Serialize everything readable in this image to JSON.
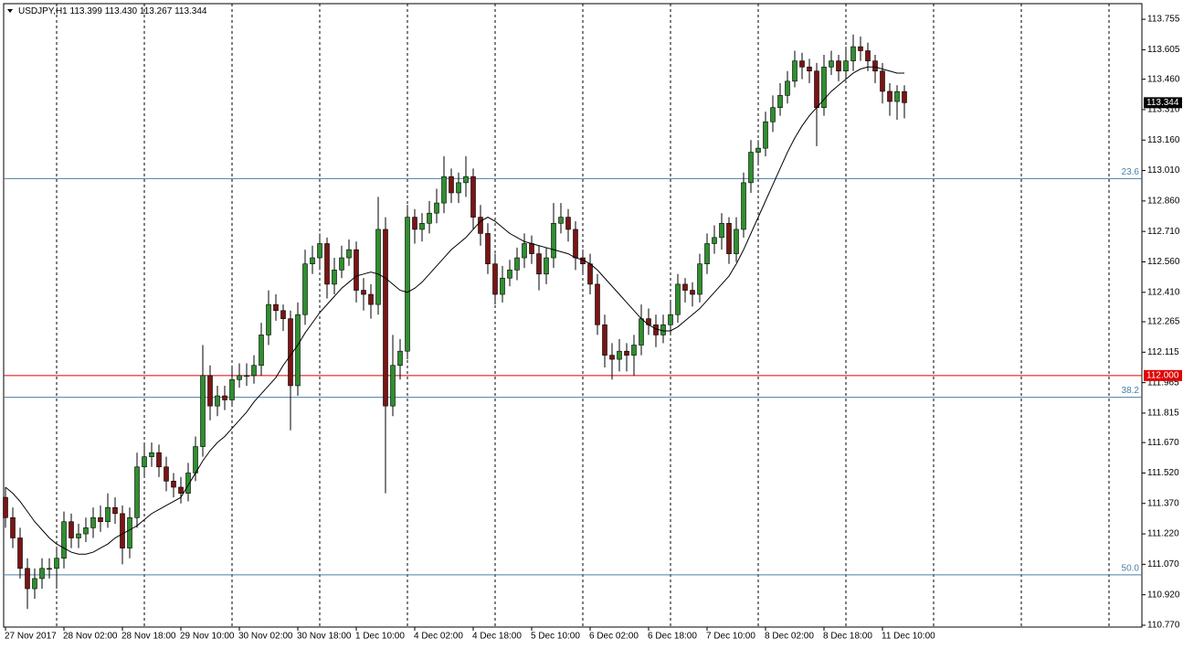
{
  "chart_data": {
    "type": "candlestick",
    "title": "USDJPY,H1",
    "header_values": [
      "113.399",
      "113.430",
      "113.267",
      "113.344"
    ],
    "ylim": [
      110.761,
      113.832
    ],
    "yticks": [
      {
        "value": 113.755,
        "label": "113.755"
      },
      {
        "value": 113.605,
        "label": "113.605"
      },
      {
        "value": 113.46,
        "label": "113.460"
      },
      {
        "value": 113.31,
        "label": "113.310"
      },
      {
        "value": 113.16,
        "label": "113.160"
      },
      {
        "value": 113.01,
        "label": "113.010"
      },
      {
        "value": 112.86,
        "label": "112.860"
      },
      {
        "value": 112.71,
        "label": "112.710"
      },
      {
        "value": 112.56,
        "label": "112.560"
      },
      {
        "value": 112.41,
        "label": "112.410"
      },
      {
        "value": 112.265,
        "label": "112.265"
      },
      {
        "value": 112.115,
        "label": "112.115"
      },
      {
        "value": 111.965,
        "label": "111.965"
      },
      {
        "value": 111.815,
        "label": "111.815"
      },
      {
        "value": 111.67,
        "label": "111.670"
      },
      {
        "value": 111.52,
        "label": "111.520"
      },
      {
        "value": 111.37,
        "label": "111.370"
      },
      {
        "value": 111.22,
        "label": "111.220"
      },
      {
        "value": 111.07,
        "label": "111.070"
      },
      {
        "value": 110.92,
        "label": "110.920"
      },
      {
        "value": 110.77,
        "label": "110.770"
      }
    ],
    "xticks": [
      {
        "value": 0,
        "label": "27 Nov 2017"
      },
      {
        "value": 8,
        "label": "28 Nov 02:00"
      },
      {
        "value": 16,
        "label": "28 Nov 18:00"
      },
      {
        "value": 24,
        "label": "29 Nov 10:00"
      },
      {
        "value": 32,
        "label": "30 Nov 02:00"
      },
      {
        "value": 40,
        "label": "30 Nov 18:00"
      },
      {
        "value": 48,
        "label": "1 Dec 10:00"
      },
      {
        "value": 56,
        "label": "4 Dec 02:00"
      },
      {
        "value": 64,
        "label": "4 Dec 18:00"
      },
      {
        "value": 72,
        "label": "5 Dec 10:00"
      },
      {
        "value": 80,
        "label": "6 Dec 02:00"
      },
      {
        "value": 88,
        "label": "6 Dec 18:00"
      },
      {
        "value": 96,
        "label": "7 Dec 10:00"
      },
      {
        "value": 104,
        "label": "8 Dec 02:00"
      },
      {
        "value": 112,
        "label": "8 Dec 18:00"
      },
      {
        "value": 120,
        "label": "11 Dec 10:00"
      }
    ],
    "price_line": {
      "value": 112,
      "label": "112.000",
      "color": "#e00000"
    },
    "levels": [
      {
        "value": 112.97,
        "label": "23.6"
      },
      {
        "value": 111.893,
        "label": "38.2"
      },
      {
        "value": 111.018,
        "label": "50.0"
      }
    ],
    "level_color": "#4a7fa8",
    "up_color": "#2f8f2f",
    "down_color": "#7a1414",
    "ma_color": "#000000",
    "ohlc": [
      [
        111.4,
        111.45,
        111.25,
        111.3
      ],
      [
        111.3,
        111.35,
        111.15,
        111.2
      ],
      [
        111.2,
        111.25,
        111.0,
        111.05
      ],
      [
        111.05,
        111.1,
        110.85,
        110.95
      ],
      [
        110.95,
        111.05,
        110.9,
        111.0
      ],
      [
        111.0,
        111.1,
        110.95,
        111.05
      ],
      [
        111.05,
        111.1,
        111.0,
        111.05
      ],
      [
        111.05,
        111.15,
        110.95,
        111.1
      ],
      [
        111.1,
        111.33,
        111.05,
        111.28
      ],
      [
        111.28,
        111.32,
        111.15,
        111.2
      ],
      [
        111.2,
        111.27,
        111.15,
        111.22
      ],
      [
        111.22,
        111.3,
        111.18,
        111.25
      ],
      [
        111.25,
        111.35,
        111.2,
        111.3
      ],
      [
        111.3,
        111.36,
        111.23,
        111.28
      ],
      [
        111.28,
        111.42,
        111.25,
        111.35
      ],
      [
        111.35,
        111.4,
        111.27,
        111.32
      ],
      [
        111.32,
        111.36,
        111.07,
        111.15
      ],
      [
        111.15,
        111.35,
        111.1,
        111.3
      ],
      [
        111.3,
        111.62,
        111.25,
        111.55
      ],
      [
        111.55,
        111.66,
        111.5,
        111.6
      ],
      [
        111.6,
        111.67,
        111.55,
        111.62
      ],
      [
        111.62,
        111.66,
        111.5,
        111.55
      ],
      [
        111.55,
        111.6,
        111.43,
        111.48
      ],
      [
        111.48,
        111.52,
        111.4,
        111.45
      ],
      [
        111.45,
        111.5,
        111.37,
        111.42
      ],
      [
        111.42,
        111.57,
        111.38,
        111.52
      ],
      [
        111.52,
        111.7,
        111.48,
        111.65
      ],
      [
        111.65,
        112.15,
        111.6,
        112.0
      ],
      [
        112.0,
        112.05,
        111.78,
        111.85
      ],
      [
        111.85,
        111.95,
        111.8,
        111.9
      ],
      [
        111.9,
        111.95,
        111.83,
        111.88
      ],
      [
        111.88,
        112.05,
        111.85,
        111.98
      ],
      [
        111.98,
        112.06,
        111.94,
        112.0
      ],
      [
        112.0,
        112.06,
        111.95,
        112.0
      ],
      [
        112.0,
        112.1,
        111.96,
        112.05
      ],
      [
        112.05,
        112.26,
        112.0,
        112.2
      ],
      [
        112.2,
        112.42,
        112.15,
        112.35
      ],
      [
        112.35,
        112.4,
        112.27,
        112.32
      ],
      [
        112.32,
        112.35,
        112.22,
        112.28
      ],
      [
        112.28,
        112.32,
        111.73,
        111.95
      ],
      [
        111.95,
        112.36,
        111.9,
        112.3
      ],
      [
        112.3,
        112.62,
        112.25,
        112.55
      ],
      [
        112.55,
        112.64,
        112.5,
        112.58
      ],
      [
        112.58,
        112.7,
        112.52,
        112.65
      ],
      [
        112.65,
        112.68,
        112.38,
        112.45
      ],
      [
        112.45,
        112.58,
        112.4,
        112.52
      ],
      [
        112.52,
        112.64,
        112.48,
        112.58
      ],
      [
        112.58,
        112.67,
        112.54,
        112.62
      ],
      [
        112.62,
        112.66,
        112.36,
        112.42
      ],
      [
        112.42,
        112.48,
        112.32,
        112.4
      ],
      [
        112.4,
        112.45,
        112.28,
        112.35
      ],
      [
        112.35,
        112.88,
        112.3,
        112.72
      ],
      [
        112.72,
        112.78,
        111.42,
        111.85
      ],
      [
        111.85,
        112.2,
        111.8,
        112.05
      ],
      [
        112.05,
        112.18,
        111.98,
        112.12
      ],
      [
        112.12,
        112.84,
        112.08,
        112.78
      ],
      [
        112.78,
        112.82,
        112.65,
        112.72
      ],
      [
        112.72,
        112.8,
        112.66,
        112.75
      ],
      [
        112.75,
        112.86,
        112.7,
        112.8
      ],
      [
        112.8,
        112.92,
        112.75,
        112.85
      ],
      [
        112.85,
        113.08,
        112.8,
        112.98
      ],
      [
        112.98,
        113.02,
        112.85,
        112.9
      ],
      [
        112.9,
        113.0,
        112.85,
        112.95
      ],
      [
        112.95,
        113.08,
        112.88,
        112.98
      ],
      [
        112.98,
        113.02,
        112.72,
        112.78
      ],
      [
        112.78,
        112.84,
        112.64,
        112.7
      ],
      [
        112.7,
        112.75,
        112.5,
        112.55
      ],
      [
        112.55,
        112.6,
        112.35,
        112.4
      ],
      [
        112.4,
        112.54,
        112.36,
        112.48
      ],
      [
        112.48,
        112.57,
        112.44,
        112.52
      ],
      [
        112.52,
        112.63,
        112.47,
        112.58
      ],
      [
        112.58,
        112.7,
        112.53,
        112.65
      ],
      [
        112.65,
        112.69,
        112.55,
        112.6
      ],
      [
        112.6,
        112.64,
        112.42,
        112.5
      ],
      [
        112.5,
        112.63,
        112.45,
        112.58
      ],
      [
        112.58,
        112.85,
        112.53,
        112.75
      ],
      [
        112.75,
        112.85,
        112.7,
        112.78
      ],
      [
        112.78,
        112.82,
        112.66,
        112.72
      ],
      [
        112.72,
        112.76,
        112.52,
        112.58
      ],
      [
        112.58,
        112.62,
        112.5,
        112.55
      ],
      [
        112.55,
        112.6,
        112.4,
        112.45
      ],
      [
        112.45,
        112.5,
        112.2,
        112.25
      ],
      [
        112.25,
        112.3,
        112.04,
        112.1
      ],
      [
        112.1,
        112.16,
        111.98,
        112.08
      ],
      [
        112.08,
        112.18,
        112.02,
        112.12
      ],
      [
        112.12,
        112.16,
        112.02,
        112.1
      ],
      [
        112.1,
        112.2,
        112.0,
        112.15
      ],
      [
        112.15,
        112.35,
        112.1,
        112.28
      ],
      [
        112.28,
        112.33,
        112.2,
        112.25
      ],
      [
        112.25,
        112.3,
        112.14,
        112.2
      ],
      [
        112.2,
        112.3,
        112.16,
        112.25
      ],
      [
        112.25,
        112.36,
        112.2,
        112.3
      ],
      [
        112.3,
        112.5,
        112.26,
        112.45
      ],
      [
        112.45,
        112.48,
        112.36,
        112.42
      ],
      [
        112.42,
        112.46,
        112.34,
        112.4
      ],
      [
        112.4,
        112.6,
        112.36,
        112.55
      ],
      [
        112.55,
        112.7,
        112.5,
        112.65
      ],
      [
        112.65,
        112.74,
        112.6,
        112.68
      ],
      [
        112.68,
        112.8,
        112.62,
        112.75
      ],
      [
        112.75,
        112.78,
        112.55,
        112.6
      ],
      [
        112.6,
        112.78,
        112.56,
        112.72
      ],
      [
        112.72,
        113.0,
        112.68,
        112.95
      ],
      [
        112.95,
        113.16,
        112.9,
        113.1
      ],
      [
        113.1,
        113.16,
        113.04,
        113.12
      ],
      [
        113.12,
        113.3,
        113.08,
        113.25
      ],
      [
        113.25,
        113.38,
        113.2,
        113.32
      ],
      [
        113.32,
        113.44,
        113.28,
        113.38
      ],
      [
        113.38,
        113.5,
        113.34,
        113.45
      ],
      [
        113.45,
        113.6,
        113.42,
        113.55
      ],
      [
        113.55,
        113.59,
        113.46,
        113.52
      ],
      [
        113.52,
        113.56,
        113.44,
        113.5
      ],
      [
        113.5,
        113.54,
        113.13,
        113.32
      ],
      [
        113.32,
        113.58,
        113.28,
        113.52
      ],
      [
        113.52,
        113.6,
        113.48,
        113.55
      ],
      [
        113.55,
        113.58,
        113.45,
        113.5
      ],
      [
        113.5,
        113.62,
        113.46,
        113.55
      ],
      [
        113.55,
        113.68,
        113.5,
        113.62
      ],
      [
        113.62,
        113.67,
        113.55,
        113.6
      ],
      [
        113.6,
        113.64,
        113.5,
        113.55
      ],
      [
        113.55,
        113.58,
        113.44,
        113.5
      ],
      [
        113.5,
        113.54,
        113.34,
        113.4
      ],
      [
        113.4,
        113.44,
        113.28,
        113.35
      ],
      [
        113.35,
        113.43,
        113.26,
        113.399
      ],
      [
        113.399,
        113.43,
        113.267,
        113.344
      ]
    ],
    "ma": [
      111.45,
      111.42,
      111.38,
      111.33,
      111.28,
      111.24,
      111.2,
      111.17,
      111.15,
      111.13,
      111.12,
      111.12,
      111.13,
      111.15,
      111.17,
      111.2,
      111.22,
      111.24,
      111.26,
      111.29,
      111.32,
      111.34,
      111.36,
      111.38,
      111.4,
      111.46,
      111.52,
      111.58,
      111.63,
      111.67,
      111.7,
      111.74,
      111.78,
      111.82,
      111.87,
      111.91,
      111.95,
      111.99,
      112.05,
      112.1,
      112.15,
      112.21,
      112.26,
      112.31,
      112.35,
      112.39,
      112.43,
      112.46,
      112.49,
      112.5,
      112.51,
      112.5,
      112.48,
      112.45,
      112.42,
      112.41,
      112.43,
      112.46,
      112.5,
      112.54,
      112.58,
      112.62,
      112.65,
      112.68,
      112.72,
      112.76,
      112.78,
      112.76,
      112.73,
      112.7,
      112.68,
      112.66,
      112.65,
      112.64,
      112.63,
      112.62,
      112.61,
      112.6,
      112.58,
      112.57,
      112.55,
      112.52,
      112.48,
      112.44,
      112.4,
      112.36,
      112.32,
      112.28,
      112.25,
      112.23,
      112.22,
      112.22,
      112.24,
      112.27,
      112.3,
      112.33,
      112.37,
      112.41,
      112.45,
      112.49,
      112.55,
      112.62,
      112.7,
      112.78,
      112.86,
      112.94,
      113.02,
      113.1,
      113.17,
      113.23,
      113.28,
      113.32,
      113.36,
      113.4,
      113.43,
      113.46,
      113.49,
      113.51,
      113.52,
      113.52,
      113.51,
      113.5,
      113.49,
      113.49
    ]
  }
}
